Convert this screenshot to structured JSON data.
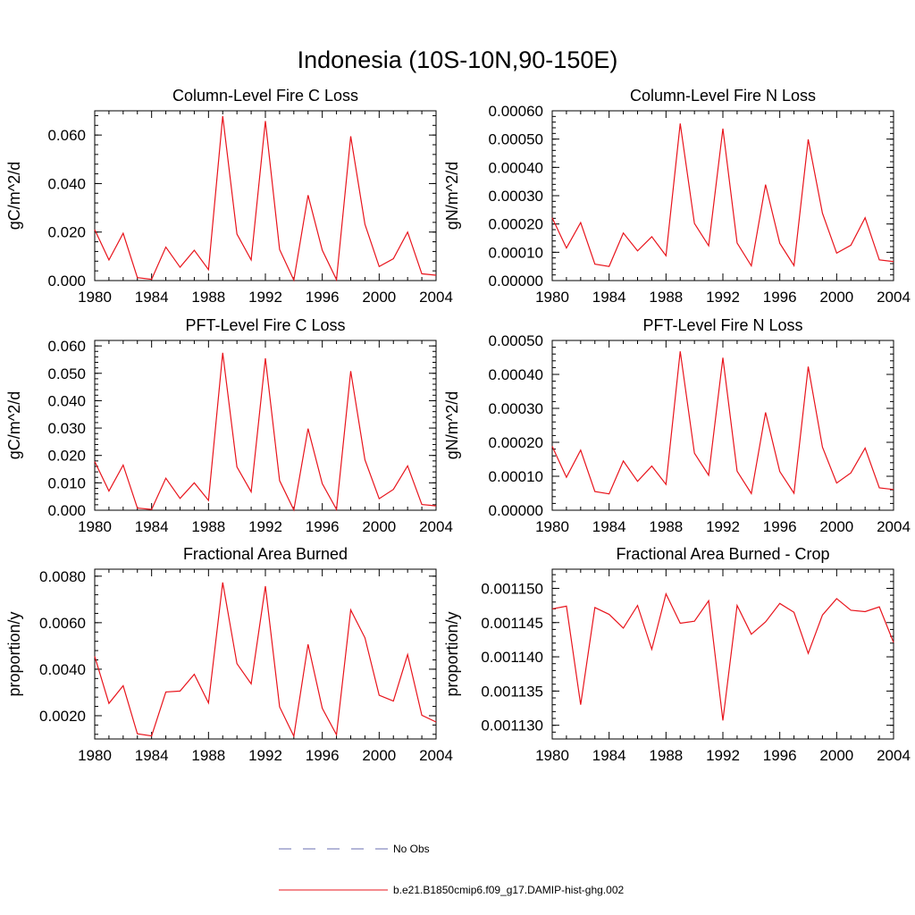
{
  "figure": {
    "title": "Indonesia (10S-10N,90-150E)"
  },
  "legend": {
    "items": [
      {
        "label": "No Obs",
        "color": "#6a6fb0",
        "style": "dashed"
      },
      {
        "label": "b.e21.B1850cmip6.f09_g17.DAMIP-hist-ghg.002",
        "color": "#e8141c",
        "style": "solid"
      }
    ]
  },
  "chart_data": [
    {
      "type": "line",
      "title": "Column-Level Fire C Loss",
      "ylabel": "gC/m^2/d",
      "xlim": [
        1980,
        2004
      ],
      "ylim": [
        0,
        0.07
      ],
      "xticks": [
        1980,
        1984,
        1988,
        1992,
        1996,
        2000,
        2004
      ],
      "yticks": [
        0,
        0.02,
        0.04,
        0.06
      ],
      "ytick_labels": [
        "0.000",
        "0.020",
        "0.040",
        "0.060"
      ],
      "series": [
        {
          "color": "#e8141c",
          "x": [
            1980,
            1981,
            1982,
            1983,
            1984,
            1985,
            1986,
            1987,
            1988,
            1989,
            1990,
            1991,
            1992,
            1993,
            1994,
            1995,
            1996,
            1997,
            1998,
            1999,
            2000,
            2001,
            2002,
            2003,
            2004
          ],
          "values": [
            0.021,
            0.0085,
            0.0195,
            0.0012,
            0.0005,
            0.0138,
            0.0055,
            0.0125,
            0.0045,
            0.0678,
            0.0192,
            0.0085,
            0.0658,
            0.0128,
            0.0002,
            0.0352,
            0.0125,
            0.0004,
            0.0595,
            0.0232,
            0.0058,
            0.009,
            0.02,
            0.0028,
            0.0022
          ]
        }
      ]
    },
    {
      "type": "line",
      "title": "Column-Level Fire N Loss",
      "ylabel": "gN/m^2/d",
      "xlim": [
        1980,
        2004
      ],
      "ylim": [
        0,
        0.0006
      ],
      "xticks": [
        1980,
        1984,
        1988,
        1992,
        1996,
        2000,
        2004
      ],
      "yticks": [
        0,
        0.0001,
        0.0002,
        0.0003,
        0.0004,
        0.0005,
        0.0006
      ],
      "ytick_labels": [
        "0.00000",
        "0.00010",
        "0.00020",
        "0.00030",
        "0.00040",
        "0.00050",
        "0.00060"
      ],
      "series": [
        {
          "color": "#e8141c",
          "x": [
            1980,
            1981,
            1982,
            1983,
            1984,
            1985,
            1986,
            1987,
            1988,
            1989,
            1990,
            1991,
            1992,
            1993,
            1994,
            1995,
            1996,
            1997,
            1998,
            1999,
            2000,
            2001,
            2002,
            2003,
            2004
          ],
          "values": [
            0.000222,
            0.000115,
            0.000205,
            5.8e-05,
            5e-05,
            0.000168,
            0.000105,
            0.000155,
            8.8e-05,
            0.000555,
            0.000202,
            0.000123,
            0.000537,
            0.000133,
            5.2e-05,
            0.000339,
            0.000132,
            5.3e-05,
            0.000499,
            0.000238,
            9.7e-05,
            0.000125,
            0.000222,
            7.3e-05,
            6.7e-05
          ]
        }
      ]
    },
    {
      "type": "line",
      "title": "PFT-Level Fire C Loss",
      "ylabel": "gC/m^2/d",
      "xlim": [
        1980,
        2004
      ],
      "ylim": [
        0,
        0.062
      ],
      "xticks": [
        1980,
        1984,
        1988,
        1992,
        1996,
        2000,
        2004
      ],
      "yticks": [
        0,
        0.01,
        0.02,
        0.03,
        0.04,
        0.05,
        0.06
      ],
      "ytick_labels": [
        "0.000",
        "0.010",
        "0.020",
        "0.030",
        "0.040",
        "0.050",
        "0.060"
      ],
      "series": [
        {
          "color": "#e8141c",
          "x": [
            1980,
            1981,
            1982,
            1983,
            1984,
            1985,
            1986,
            1987,
            1988,
            1989,
            1990,
            1991,
            1992,
            1993,
            1994,
            1995,
            1996,
            1997,
            1998,
            1999,
            2000,
            2001,
            2002,
            2003,
            2004
          ],
          "values": [
            0.0178,
            0.007,
            0.0165,
            0.0008,
            0.0003,
            0.0117,
            0.0043,
            0.01,
            0.0036,
            0.0575,
            0.0158,
            0.0067,
            0.0555,
            0.0108,
            0.0001,
            0.0298,
            0.0097,
            0.0003,
            0.0508,
            0.0184,
            0.0042,
            0.0076,
            0.0162,
            0.0021,
            0.0016
          ]
        }
      ]
    },
    {
      "type": "line",
      "title": "PFT-Level Fire N Loss",
      "ylabel": "gN/m^2/d",
      "xlim": [
        1980,
        2004
      ],
      "ylim": [
        0,
        0.0005
      ],
      "xticks": [
        1980,
        1984,
        1988,
        1992,
        1996,
        2000,
        2004
      ],
      "yticks": [
        0,
        0.0001,
        0.0002,
        0.0003,
        0.0004,
        0.0005
      ],
      "ytick_labels": [
        "0.00000",
        "0.00010",
        "0.00020",
        "0.00030",
        "0.00040",
        "0.00050"
      ],
      "series": [
        {
          "color": "#e8141c",
          "x": [
            1980,
            1981,
            1982,
            1983,
            1984,
            1985,
            1986,
            1987,
            1988,
            1989,
            1990,
            1991,
            1992,
            1993,
            1994,
            1995,
            1996,
            1997,
            1998,
            1999,
            2000,
            2001,
            2002,
            2003,
            2004
          ],
          "values": [
            0.000188,
            9.7e-05,
            0.000177,
            5.5e-05,
            4.8e-05,
            0.000145,
            8.5e-05,
            0.00013,
            7.6e-05,
            0.000468,
            0.000168,
            0.000103,
            0.000449,
            0.000115,
            4.9e-05,
            0.000288,
            0.000114,
            5e-05,
            0.000423,
            0.000186,
            8e-05,
            0.00011,
            0.000183,
            6.6e-05,
            6.1e-05
          ]
        }
      ]
    },
    {
      "type": "line",
      "title": "Fractional Area Burned",
      "ylabel": "proportion/y",
      "xlim": [
        1980,
        2004
      ],
      "ylim": [
        0.001,
        0.0083
      ],
      "xticks": [
        1980,
        1984,
        1988,
        1992,
        1996,
        2000,
        2004
      ],
      "yticks": [
        0.002,
        0.004,
        0.006,
        0.008
      ],
      "ytick_labels": [
        "0.0020",
        "0.0040",
        "0.0060",
        "0.0080"
      ],
      "series": [
        {
          "color": "#e8141c",
          "x": [
            1980,
            1981,
            1982,
            1983,
            1984,
            1985,
            1986,
            1987,
            1988,
            1989,
            1990,
            1991,
            1992,
            1993,
            1994,
            1995,
            1996,
            1997,
            1998,
            1999,
            2000,
            2001,
            2002,
            2003,
            2004
          ],
          "values": [
            0.00455,
            0.00253,
            0.00329,
            0.00122,
            0.00113,
            0.00302,
            0.00306,
            0.00378,
            0.00255,
            0.00773,
            0.00424,
            0.00337,
            0.00757,
            0.00238,
            0.00112,
            0.00507,
            0.00232,
            0.00118,
            0.00655,
            0.00535,
            0.00288,
            0.00263,
            0.00463,
            0.00202,
            0.00173
          ]
        }
      ]
    },
    {
      "type": "line",
      "title": "Fractional Area Burned - Crop",
      "ylabel": "proportion/y",
      "xlim": [
        1980,
        2004
      ],
      "ylim": [
        0.001128,
        0.0011528
      ],
      "xticks": [
        1980,
        1984,
        1988,
        1992,
        1996,
        2000,
        2004
      ],
      "yticks": [
        0.00113,
        0.001135,
        0.00114,
        0.001145,
        0.00115
      ],
      "ytick_labels": [
        "0.001130",
        "0.001135",
        "0.001140",
        "0.001145",
        "0.001150"
      ],
      "series": [
        {
          "color": "#e8141c",
          "x": [
            1980,
            1981,
            1982,
            1983,
            1984,
            1985,
            1986,
            1987,
            1988,
            1989,
            1990,
            1991,
            1992,
            1993,
            1994,
            1995,
            1996,
            1997,
            1998,
            1999,
            2000,
            2001,
            2002,
            2003,
            2004
          ],
          "values": [
            0.001147,
            0.0011474,
            0.001133,
            0.0011472,
            0.0011462,
            0.0011442,
            0.0011475,
            0.0011411,
            0.0011492,
            0.0011449,
            0.0011452,
            0.0011482,
            0.0011307,
            0.0011475,
            0.0011433,
            0.0011451,
            0.0011478,
            0.0011465,
            0.0011405,
            0.0011461,
            0.0011485,
            0.0011468,
            0.0011466,
            0.0011473,
            0.0011421
          ]
        }
      ]
    }
  ]
}
